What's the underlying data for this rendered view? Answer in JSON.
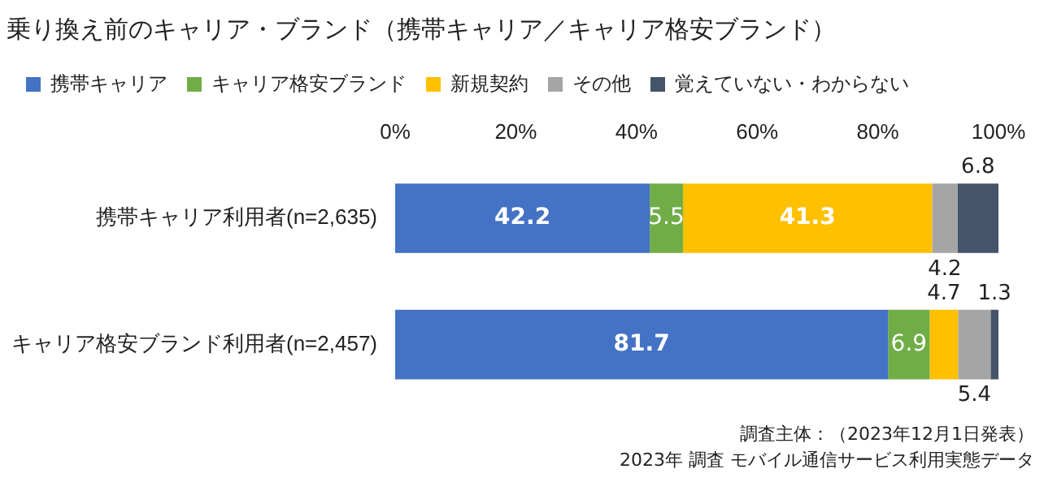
{
  "chart_data": {
    "type": "bar",
    "orientation": "horizontal",
    "stacked": true,
    "title": "乗り換え前のキャリア・ブランド（携帯キャリア／キャリア格安ブランド）",
    "categories": [
      "携帯キャリア利用者(n=2,635)",
      "キャリア格安ブランド利用者(n=2,457)"
    ],
    "series": [
      {
        "name": "携帯キャリア",
        "color": "#4472c4",
        "values": [
          42.2,
          81.7
        ]
      },
      {
        "name": "キャリア格安ブランド",
        "color": "#70ad47",
        "values": [
          5.5,
          6.9
        ]
      },
      {
        "name": "新規契約",
        "color": "#ffc000",
        "values": [
          41.3,
          4.7
        ]
      },
      {
        "name": "その他",
        "color": "#a5a5a5",
        "values": [
          4.2,
          5.4
        ]
      },
      {
        "name": "覚えていない・わからない",
        "color": "#44546a",
        "values": [
          6.8,
          1.3
        ]
      }
    ],
    "xlim": [
      0,
      100
    ],
    "xticks": [
      {
        "value": 0,
        "label": "0%"
      },
      {
        "value": 20,
        "label": "20%"
      },
      {
        "value": 40,
        "label": "40%"
      },
      {
        "value": 60,
        "label": "60%"
      },
      {
        "value": 80,
        "label": "80%"
      },
      {
        "value": 100,
        "label": "100%"
      }
    ],
    "grid": false,
    "legend": "top",
    "data_labels": true,
    "annotations": [
      "調査主体：（2023年12月1日発表）",
      "2023年 調査 モバイル通信サービス利用実態データ"
    ]
  }
}
